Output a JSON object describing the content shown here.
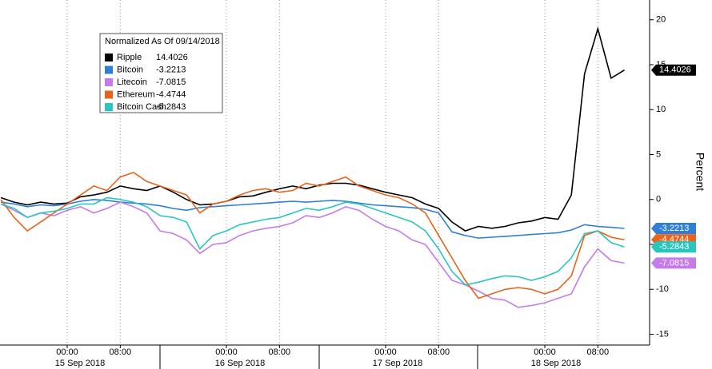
{
  "chart_data": {
    "type": "line",
    "legend_title": "Normalized As Of 09/14/2018",
    "y_label": "Percent",
    "x": [
      -10,
      -8,
      -6,
      -4,
      -2,
      0,
      2,
      4,
      6,
      8,
      10,
      12,
      14,
      16,
      18,
      20,
      22,
      24,
      26,
      28,
      30,
      32,
      34,
      36,
      38,
      40,
      42,
      44,
      46,
      48,
      50,
      52,
      54,
      56,
      58,
      60,
      62,
      64,
      66,
      68,
      70,
      72,
      74,
      76,
      78,
      80,
      82,
      84
    ],
    "xlim": [
      -10.13,
      87.8
    ],
    "xticks": [
      {
        "value": 0,
        "label": "00:00"
      },
      {
        "value": 8,
        "label": "08:00"
      },
      {
        "value": 24,
        "label": "00:00"
      },
      {
        "value": 32,
        "label": "08:00"
      },
      {
        "value": 48,
        "label": "00:00"
      },
      {
        "value": 56,
        "label": "08:00"
      },
      {
        "value": 72,
        "label": "00:00"
      },
      {
        "value": 80,
        "label": "08:00"
      }
    ],
    "date_labels": [
      "15 Sep 2018",
      "16 Sep 2018",
      "17 Sep 2018",
      "18 Sep 2018"
    ],
    "ylim": [
      -16.2,
      22.2
    ],
    "yticks": [
      20,
      15,
      10,
      5,
      0,
      -5,
      -10,
      -15
    ],
    "series": [
      {
        "name": "Ripple",
        "color": "#000000",
        "values": [
          0.2,
          -0.3,
          -0.6,
          -0.3,
          -0.5,
          -0.4,
          0.3,
          0.5,
          0.8,
          1.5,
          1.2,
          1.0,
          1.5,
          0.8,
          0.0,
          -0.6,
          -0.5,
          -0.2,
          0.3,
          0.4,
          0.8,
          1.2,
          1.5,
          1.2,
          1.6,
          1.8,
          1.8,
          1.6,
          1.2,
          0.8,
          0.5,
          0.2,
          -0.5,
          -1.0,
          -2.5,
          -3.5,
          -3.0,
          -3.2,
          -3.0,
          -2.6,
          -2.4,
          -2.0,
          -2.2,
          0.5,
          14,
          19,
          13.5,
          14.4026
        ]
      },
      {
        "name": "Bitcoin",
        "color": "#2f7fd8",
        "values": [
          -0.3,
          -0.5,
          -0.8,
          -0.6,
          -0.7,
          -0.5,
          -0.2,
          0.0,
          -0.1,
          -0.3,
          -0.4,
          -0.5,
          -0.7,
          -1.0,
          -1.2,
          -0.9,
          -0.8,
          -0.7,
          -0.6,
          -0.5,
          -0.4,
          -0.3,
          -0.2,
          -0.3,
          -0.2,
          -0.1,
          -0.2,
          -0.4,
          -0.6,
          -0.7,
          -0.8,
          -0.9,
          -1.1,
          -1.5,
          -3.6,
          -4.0,
          -4.3,
          -4.2,
          -4.1,
          -4.0,
          -3.9,
          -3.8,
          -3.7,
          -3.4,
          -2.8,
          -3.0,
          -3.1,
          -3.2213
        ]
      },
      {
        "name": "Litecoin",
        "color": "#c57be8",
        "values": [
          -0.5,
          -1.2,
          -2.0,
          -1.5,
          -1.8,
          -1.2,
          -0.8,
          -1.5,
          -1.0,
          -0.3,
          -0.8,
          -1.5,
          -3.5,
          -3.8,
          -4.5,
          -6.0,
          -5.0,
          -4.8,
          -4.0,
          -3.5,
          -3.2,
          -3.0,
          -2.6,
          -1.8,
          -2.0,
          -1.5,
          -0.8,
          -1.2,
          -2.2,
          -3.0,
          -3.5,
          -4.5,
          -5.0,
          -7.0,
          -9.0,
          -9.5,
          -10.2,
          -11.0,
          -11.2,
          -12.0,
          -11.8,
          -11.5,
          -11.0,
          -10.5,
          -7.5,
          -5.5,
          -6.8,
          -7.0815
        ]
      },
      {
        "name": "Ethereum",
        "color": "#e8641b",
        "values": [
          0.0,
          -2.0,
          -3.5,
          -2.5,
          -1.5,
          -0.5,
          0.5,
          1.5,
          1.0,
          2.5,
          3.0,
          2.0,
          1.5,
          1.0,
          0.5,
          -1.5,
          -0.5,
          -0.2,
          0.5,
          1.0,
          1.2,
          0.8,
          1.0,
          1.8,
          1.5,
          2.0,
          2.5,
          1.5,
          1.0,
          0.5,
          0.2,
          -0.5,
          -1.5,
          -4.0,
          -6.5,
          -9.0,
          -11.0,
          -10.5,
          -10.0,
          -9.8,
          -10.0,
          -10.5,
          -10.0,
          -8.5,
          -4.0,
          -3.5,
          -4.2,
          -4.4744
        ]
      },
      {
        "name": "Bitcoin Cash",
        "color": "#29c6c0",
        "values": [
          -0.5,
          -1.0,
          -2.0,
          -1.5,
          -1.3,
          -1.0,
          -0.5,
          -0.5,
          0.2,
          0.0,
          -0.3,
          -0.8,
          -1.8,
          -2.0,
          -2.5,
          -5.5,
          -4.0,
          -3.5,
          -2.8,
          -2.5,
          -2.2,
          -2.0,
          -1.5,
          -1.0,
          -1.2,
          -0.8,
          -0.3,
          -0.5,
          -1.0,
          -1.5,
          -2.0,
          -2.5,
          -3.5,
          -5.5,
          -8.0,
          -9.5,
          -9.2,
          -8.8,
          -8.5,
          -8.6,
          -9.0,
          -8.6,
          -8.0,
          -6.5,
          -3.8,
          -3.5,
          -4.8,
          -5.2843
        ]
      }
    ]
  }
}
